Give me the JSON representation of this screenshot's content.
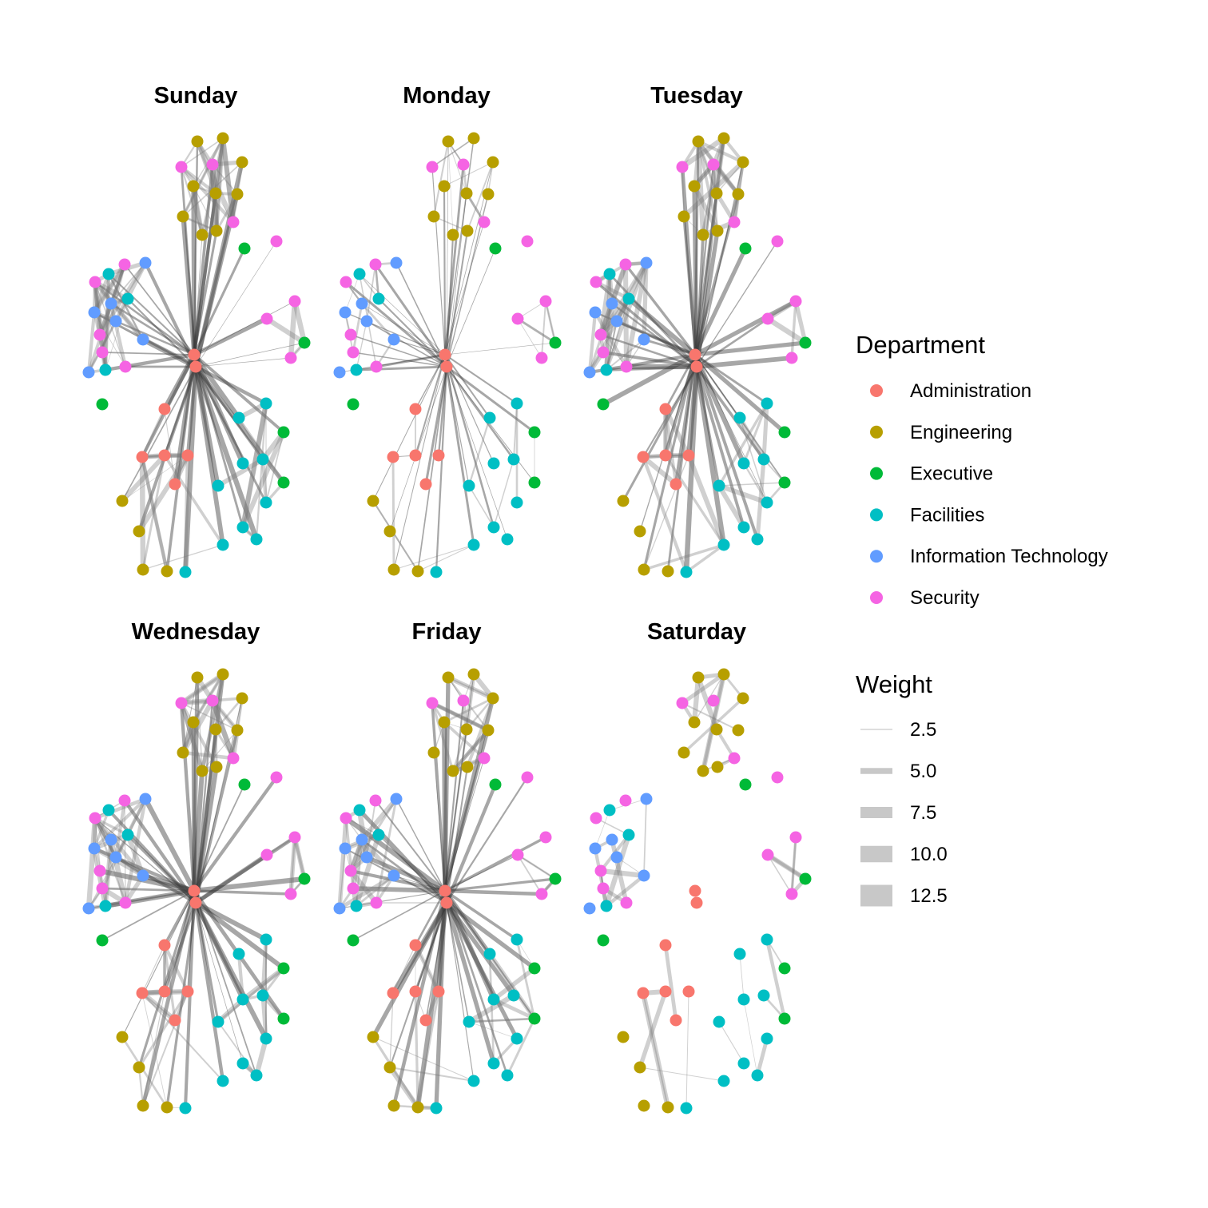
{
  "panels": [
    {
      "title": "Sunday"
    },
    {
      "title": "Monday"
    },
    {
      "title": "Tuesday"
    },
    {
      "title": "Wednesday"
    },
    {
      "title": "Friday"
    },
    {
      "title": "Saturday"
    }
  ],
  "legend": {
    "department_title": "Department",
    "departments": [
      {
        "label": "Administration",
        "color": "#F8766D"
      },
      {
        "label": "Engineering",
        "color": "#B79F00"
      },
      {
        "label": "Executive",
        "color": "#00BA38"
      },
      {
        "label": "Facilities",
        "color": "#00BFC4"
      },
      {
        "label": "Information Technology",
        "color": "#619CFF"
      },
      {
        "label": "Security",
        "color": "#F564E3"
      }
    ],
    "weight_title": "Weight",
    "weights": [
      {
        "label": "2.5",
        "value": 2.5
      },
      {
        "label": "5.0",
        "value": 5.0
      },
      {
        "label": "7.5",
        "value": 7.5
      },
      {
        "label": "10.0",
        "value": 10.0
      },
      {
        "label": "12.5",
        "value": 12.5
      }
    ]
  }
}
